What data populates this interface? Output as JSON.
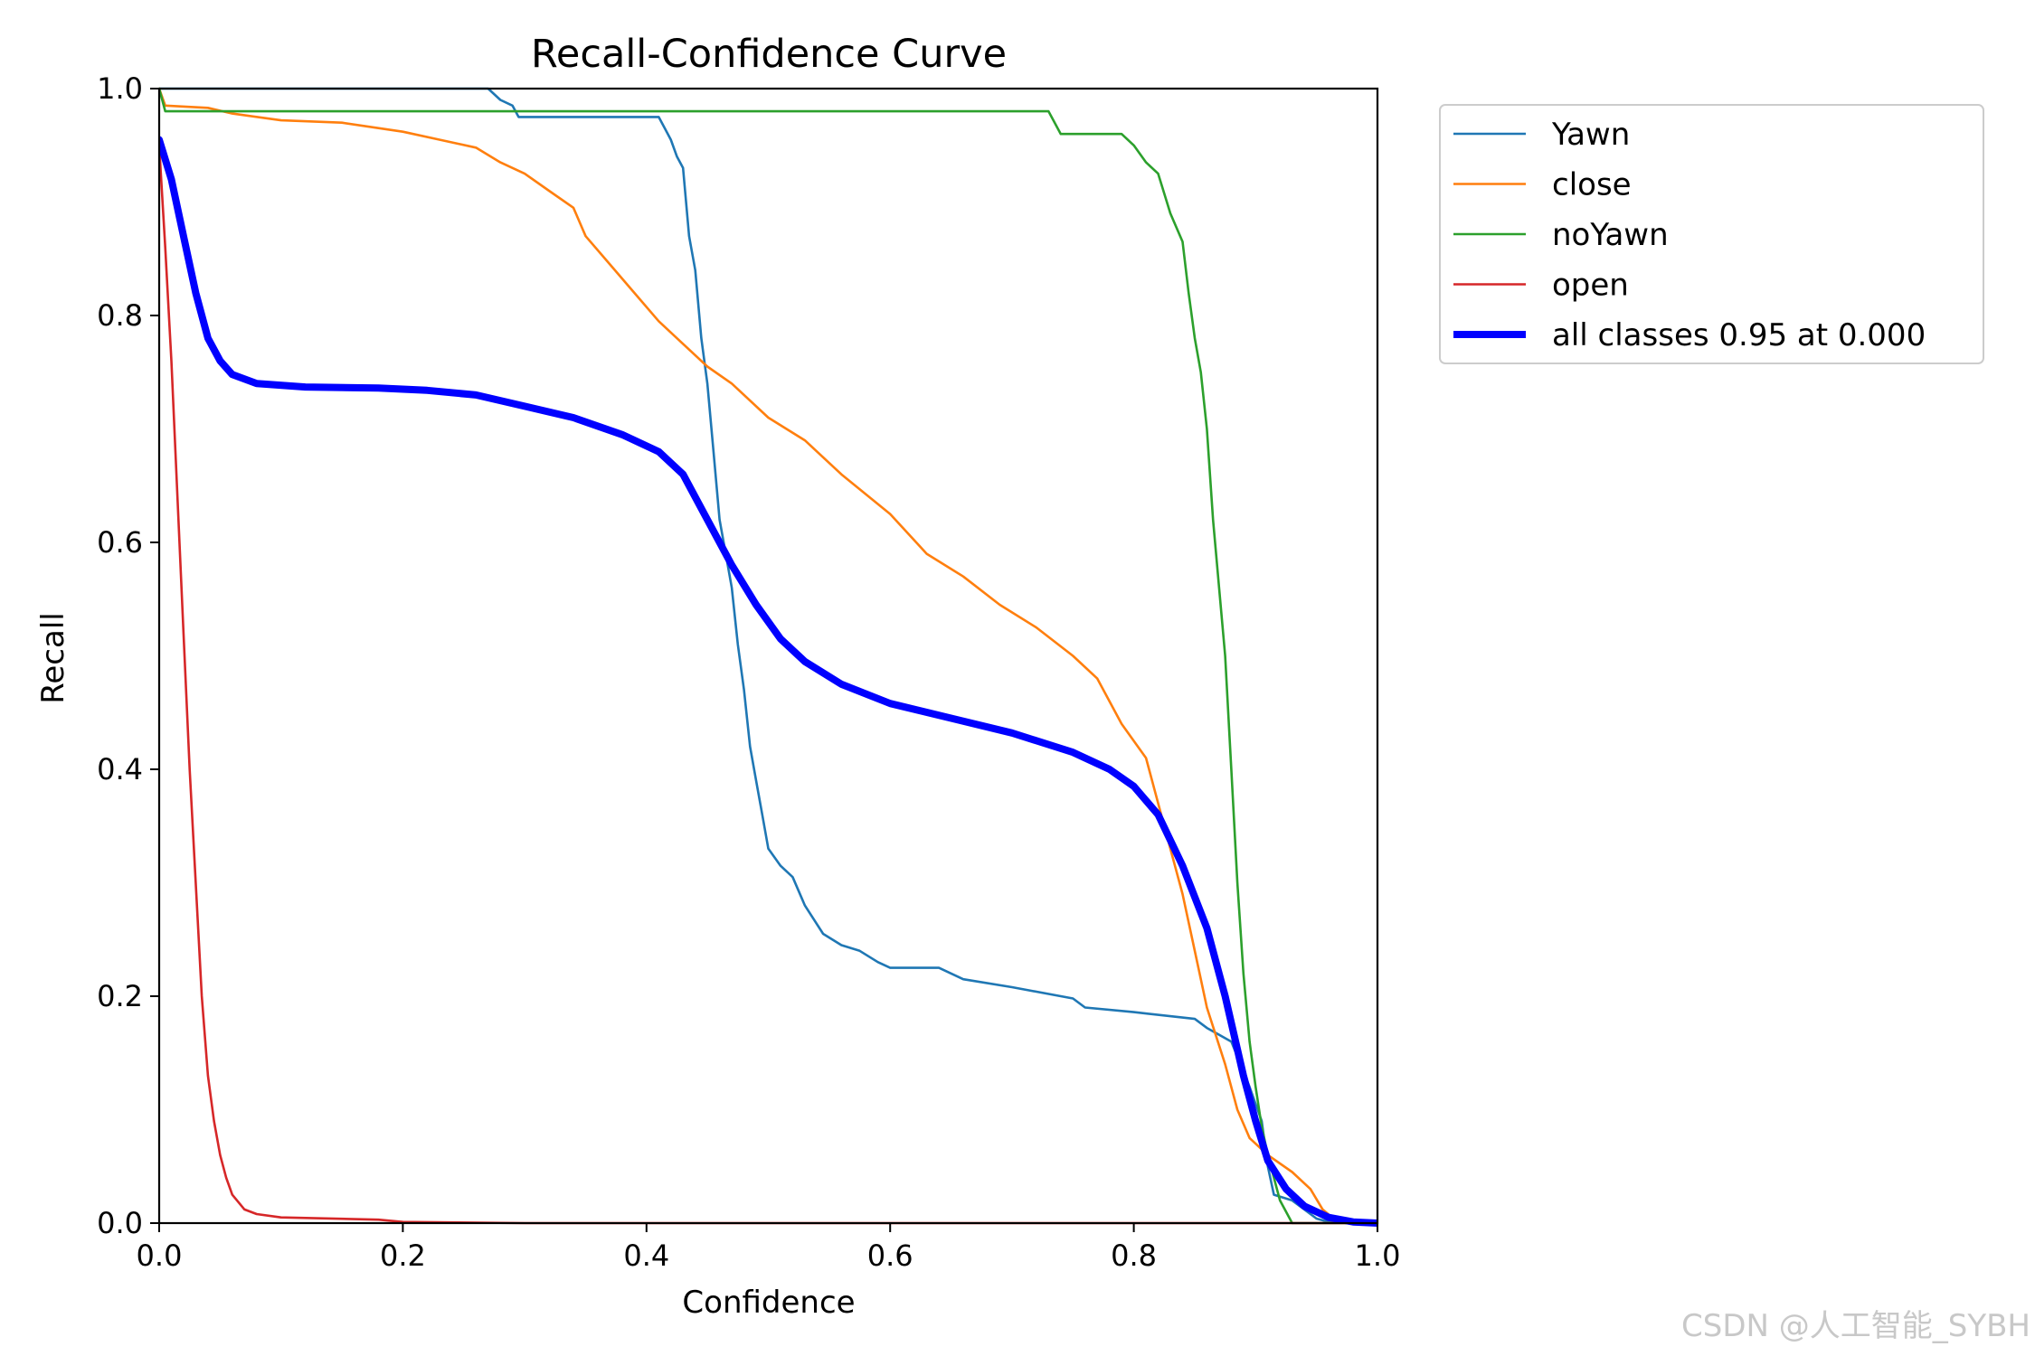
{
  "chart_data": {
    "type": "line",
    "title": "Recall-Confidence Curve",
    "xlabel": "Confidence",
    "ylabel": "Recall",
    "xlim": [
      0,
      1
    ],
    "ylim": [
      0,
      1
    ],
    "grid": false,
    "legend_placement": "outside-top-right",
    "x_ticks": [
      "0.0",
      "0.2",
      "0.4",
      "0.6",
      "0.8",
      "1.0"
    ],
    "y_ticks": [
      "0.0",
      "0.2",
      "0.4",
      "0.6",
      "0.8",
      "1.0"
    ],
    "series": [
      {
        "name": "Yawn",
        "color": "#1f77b4",
        "width": "thin",
        "points": [
          [
            0.0,
            1.0
          ],
          [
            0.27,
            1.0
          ],
          [
            0.28,
            0.99
          ],
          [
            0.29,
            0.985
          ],
          [
            0.295,
            0.975
          ],
          [
            0.35,
            0.975
          ],
          [
            0.41,
            0.975
          ],
          [
            0.415,
            0.965
          ],
          [
            0.42,
            0.955
          ],
          [
            0.425,
            0.94
          ],
          [
            0.43,
            0.93
          ],
          [
            0.435,
            0.87
          ],
          [
            0.44,
            0.84
          ],
          [
            0.445,
            0.78
          ],
          [
            0.45,
            0.74
          ],
          [
            0.455,
            0.68
          ],
          [
            0.46,
            0.62
          ],
          [
            0.465,
            0.59
          ],
          [
            0.47,
            0.56
          ],
          [
            0.475,
            0.51
          ],
          [
            0.48,
            0.47
          ],
          [
            0.485,
            0.42
          ],
          [
            0.49,
            0.39
          ],
          [
            0.495,
            0.36
          ],
          [
            0.5,
            0.33
          ],
          [
            0.51,
            0.315
          ],
          [
            0.52,
            0.305
          ],
          [
            0.53,
            0.28
          ],
          [
            0.545,
            0.255
          ],
          [
            0.56,
            0.245
          ],
          [
            0.575,
            0.24
          ],
          [
            0.59,
            0.23
          ],
          [
            0.6,
            0.225
          ],
          [
            0.64,
            0.225
          ],
          [
            0.66,
            0.215
          ],
          [
            0.7,
            0.208
          ],
          [
            0.75,
            0.198
          ],
          [
            0.76,
            0.19
          ],
          [
            0.8,
            0.186
          ],
          [
            0.85,
            0.18
          ],
          [
            0.86,
            0.172
          ],
          [
            0.88,
            0.16
          ],
          [
            0.895,
            0.12
          ],
          [
            0.905,
            0.09
          ],
          [
            0.91,
            0.05
          ],
          [
            0.915,
            0.025
          ],
          [
            0.93,
            0.02
          ],
          [
            0.94,
            0.012
          ],
          [
            0.95,
            0.004
          ],
          [
            0.96,
            0.001
          ],
          [
            1.0,
            0.0
          ]
        ]
      },
      {
        "name": "close",
        "color": "#ff7f0e",
        "width": "thin",
        "points": [
          [
            0.0,
            1.0
          ],
          [
            0.005,
            0.985
          ],
          [
            0.04,
            0.983
          ],
          [
            0.06,
            0.978
          ],
          [
            0.1,
            0.972
          ],
          [
            0.15,
            0.97
          ],
          [
            0.2,
            0.962
          ],
          [
            0.23,
            0.955
          ],
          [
            0.26,
            0.948
          ],
          [
            0.28,
            0.935
          ],
          [
            0.3,
            0.925
          ],
          [
            0.32,
            0.91
          ],
          [
            0.34,
            0.895
          ],
          [
            0.35,
            0.87
          ],
          [
            0.37,
            0.845
          ],
          [
            0.39,
            0.82
          ],
          [
            0.41,
            0.795
          ],
          [
            0.43,
            0.775
          ],
          [
            0.45,
            0.755
          ],
          [
            0.47,
            0.74
          ],
          [
            0.5,
            0.71
          ],
          [
            0.53,
            0.69
          ],
          [
            0.56,
            0.66
          ],
          [
            0.6,
            0.625
          ],
          [
            0.63,
            0.59
          ],
          [
            0.66,
            0.57
          ],
          [
            0.69,
            0.545
          ],
          [
            0.72,
            0.525
          ],
          [
            0.75,
            0.5
          ],
          [
            0.77,
            0.48
          ],
          [
            0.79,
            0.44
          ],
          [
            0.81,
            0.41
          ],
          [
            0.82,
            0.37
          ],
          [
            0.83,
            0.33
          ],
          [
            0.84,
            0.29
          ],
          [
            0.85,
            0.24
          ],
          [
            0.86,
            0.19
          ],
          [
            0.875,
            0.14
          ],
          [
            0.885,
            0.1
          ],
          [
            0.895,
            0.075
          ],
          [
            0.91,
            0.06
          ],
          [
            0.93,
            0.045
          ],
          [
            0.945,
            0.03
          ],
          [
            0.955,
            0.012
          ],
          [
            0.965,
            0.003
          ],
          [
            1.0,
            0.0
          ]
        ]
      },
      {
        "name": "noYawn",
        "color": "#2ca02c",
        "width": "thin",
        "points": [
          [
            0.0,
            1.0
          ],
          [
            0.005,
            0.98
          ],
          [
            0.73,
            0.98
          ],
          [
            0.74,
            0.96
          ],
          [
            0.79,
            0.96
          ],
          [
            0.8,
            0.95
          ],
          [
            0.81,
            0.935
          ],
          [
            0.82,
            0.925
          ],
          [
            0.83,
            0.89
          ],
          [
            0.84,
            0.865
          ],
          [
            0.845,
            0.82
          ],
          [
            0.85,
            0.78
          ],
          [
            0.855,
            0.75
          ],
          [
            0.86,
            0.7
          ],
          [
            0.865,
            0.62
          ],
          [
            0.87,
            0.56
          ],
          [
            0.875,
            0.5
          ],
          [
            0.88,
            0.4
          ],
          [
            0.885,
            0.3
          ],
          [
            0.89,
            0.22
          ],
          [
            0.895,
            0.16
          ],
          [
            0.9,
            0.12
          ],
          [
            0.905,
            0.085
          ],
          [
            0.91,
            0.06
          ],
          [
            0.915,
            0.04
          ],
          [
            0.92,
            0.02
          ],
          [
            0.93,
            0.0
          ],
          [
            1.0,
            0.0
          ]
        ]
      },
      {
        "name": "open",
        "color": "#d62728",
        "width": "thin",
        "points": [
          [
            0.0,
            0.95
          ],
          [
            0.005,
            0.86
          ],
          [
            0.01,
            0.76
          ],
          [
            0.015,
            0.64
          ],
          [
            0.02,
            0.52
          ],
          [
            0.025,
            0.4
          ],
          [
            0.03,
            0.3
          ],
          [
            0.035,
            0.2
          ],
          [
            0.04,
            0.13
          ],
          [
            0.045,
            0.09
          ],
          [
            0.05,
            0.06
          ],
          [
            0.055,
            0.04
          ],
          [
            0.06,
            0.025
          ],
          [
            0.07,
            0.012
          ],
          [
            0.08,
            0.008
          ],
          [
            0.1,
            0.005
          ],
          [
            0.18,
            0.003
          ],
          [
            0.2,
            0.001
          ],
          [
            0.3,
            0.0
          ],
          [
            1.0,
            0.0
          ]
        ]
      },
      {
        "name": "all classes 0.95 at 0.000",
        "color": "#0000ff",
        "width": "thick",
        "points": [
          [
            0.0,
            0.955
          ],
          [
            0.01,
            0.92
          ],
          [
            0.02,
            0.87
          ],
          [
            0.03,
            0.82
          ],
          [
            0.04,
            0.78
          ],
          [
            0.05,
            0.76
          ],
          [
            0.06,
            0.748
          ],
          [
            0.08,
            0.74
          ],
          [
            0.12,
            0.737
          ],
          [
            0.18,
            0.736
          ],
          [
            0.22,
            0.734
          ],
          [
            0.26,
            0.73
          ],
          [
            0.3,
            0.72
          ],
          [
            0.34,
            0.71
          ],
          [
            0.38,
            0.695
          ],
          [
            0.41,
            0.68
          ],
          [
            0.43,
            0.66
          ],
          [
            0.45,
            0.62
          ],
          [
            0.47,
            0.58
          ],
          [
            0.49,
            0.545
          ],
          [
            0.51,
            0.515
          ],
          [
            0.53,
            0.495
          ],
          [
            0.56,
            0.475
          ],
          [
            0.6,
            0.458
          ],
          [
            0.65,
            0.445
          ],
          [
            0.7,
            0.432
          ],
          [
            0.75,
            0.415
          ],
          [
            0.78,
            0.4
          ],
          [
            0.8,
            0.385
          ],
          [
            0.82,
            0.36
          ],
          [
            0.84,
            0.315
          ],
          [
            0.86,
            0.26
          ],
          [
            0.875,
            0.2
          ],
          [
            0.89,
            0.13
          ],
          [
            0.9,
            0.09
          ],
          [
            0.91,
            0.055
          ],
          [
            0.925,
            0.03
          ],
          [
            0.94,
            0.015
          ],
          [
            0.96,
            0.005
          ],
          [
            0.98,
            0.001
          ],
          [
            1.0,
            0.0
          ]
        ]
      }
    ]
  },
  "watermark": "CSDN @人工智能_SYBH"
}
